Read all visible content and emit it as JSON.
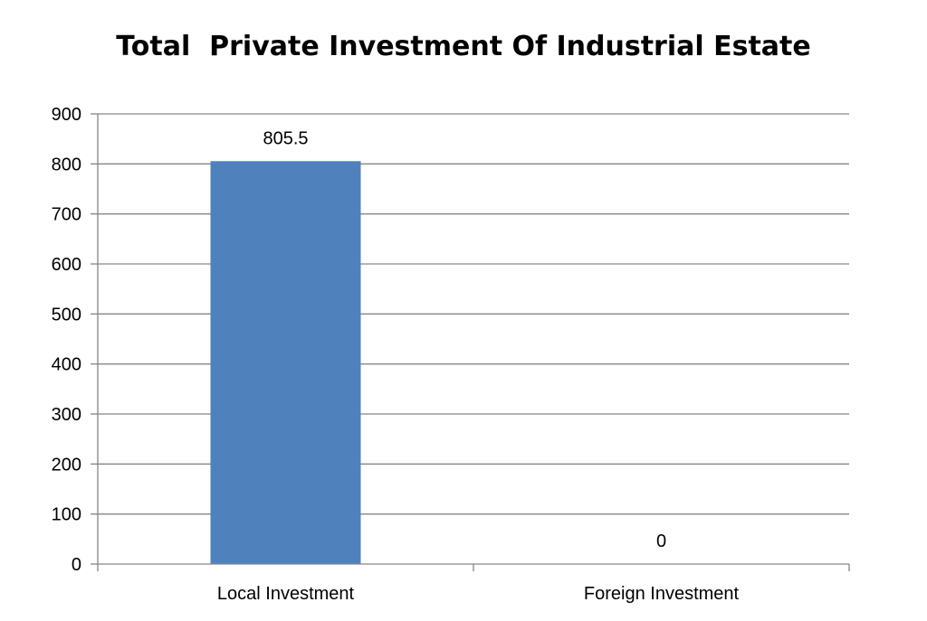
{
  "chart_data": {
    "type": "bar",
    "title": "Total  Private Investment Of Industrial Estate",
    "categories": [
      "Local Investment",
      "Foreign Investment"
    ],
    "values": [
      805.5,
      0
    ],
    "data_labels": [
      "805.5",
      "0"
    ],
    "xlabel": "",
    "ylabel": "",
    "ylim": [
      0,
      900
    ],
    "yticks": [
      0,
      100,
      200,
      300,
      400,
      500,
      600,
      700,
      800,
      900
    ],
    "grid": true,
    "legend": "none",
    "colors": {
      "bar": "#4F81BD",
      "grid": "#868686",
      "axis": "#868686",
      "text": "#000000"
    }
  }
}
